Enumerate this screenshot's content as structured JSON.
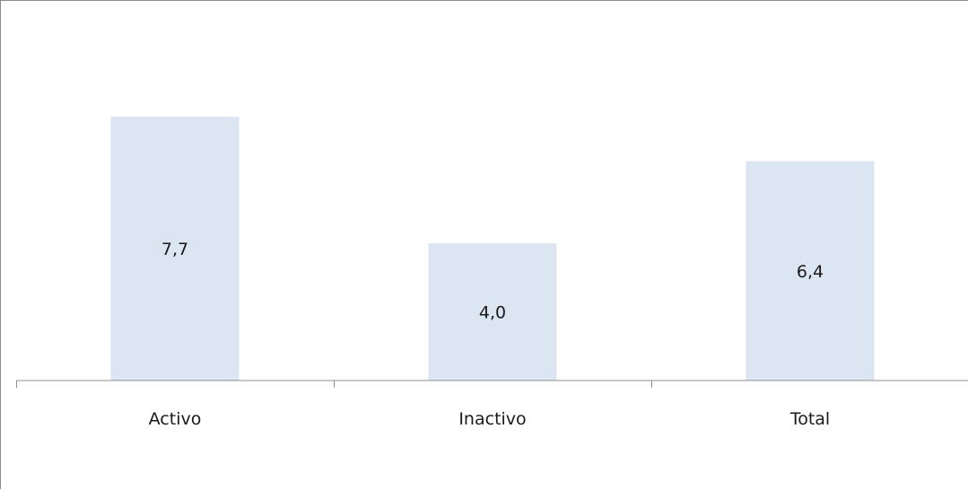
{
  "chart_data": {
    "type": "bar",
    "categories": [
      "Activo",
      "Inactivo",
      "Total"
    ],
    "values": [
      7.7,
      4.0,
      6.4
    ],
    "value_labels": [
      "7,7",
      "4,0",
      "6,4"
    ],
    "title": "",
    "xlabel": "",
    "ylabel": "",
    "ylim": [
      0,
      11
    ],
    "grid": false,
    "legend": "none",
    "colors": {
      "bar": "#dce6f2",
      "axis": "#8c8c8c",
      "text": "#1a1a1a"
    }
  }
}
